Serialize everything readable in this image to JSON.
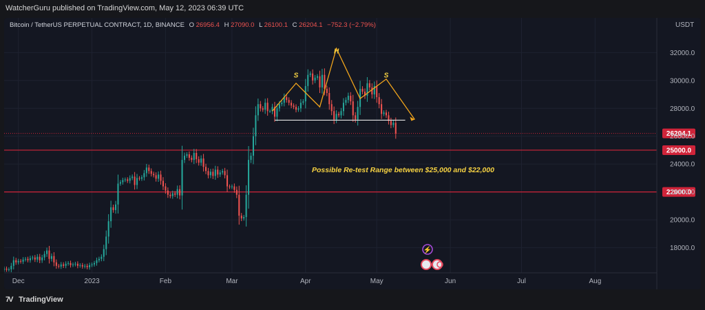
{
  "header": {
    "published": "WatcherGuru published on TradingView.com, May 12, 2023 06:39 UTC"
  },
  "legend": {
    "symbol": "Bitcoin / TetherUS PERPETUAL CONTRACT, 1D, BINANCE",
    "o_label": "O",
    "o_value": "26956.4",
    "h_label": "H",
    "h_value": "27090.0",
    "l_label": "L",
    "l_value": "26100.1",
    "c_label": "C",
    "c_value": "26204.1",
    "change": "−752.3 (−2.79%)"
  },
  "footer": {
    "brand": "TradingView"
  },
  "colors": {
    "up": "#26a69a",
    "down": "#ef5350",
    "line": "#d0243a",
    "pattern": "#f0a41c",
    "text_yellow": "#f5d142",
    "bg": "#141722"
  },
  "chart_data": {
    "type": "candlestick",
    "currency_label": "USDT",
    "ylim": [
      16200,
      33400
    ],
    "y_ticks": [
      18000,
      20000,
      22000,
      24000,
      26000,
      28000,
      30000,
      32000
    ],
    "y_tick_labels": [
      "18000.0",
      "20000.0",
      "22000.0",
      "24000.0",
      "26000.0",
      "28000.0",
      "30000.0",
      "32000.0"
    ],
    "x_start_date": "2022-11-25",
    "x_end_date": "2023-08-27",
    "x_ticks": [
      {
        "date": "2022-12-01",
        "label": "Dec"
      },
      {
        "date": "2023-01-01",
        "label": "2023"
      },
      {
        "date": "2023-02-01",
        "label": "Feb"
      },
      {
        "date": "2023-03-01",
        "label": "Mar"
      },
      {
        "date": "2023-04-01",
        "label": "Apr"
      },
      {
        "date": "2023-05-01",
        "label": "May"
      },
      {
        "date": "2023-06-01",
        "label": "Jun"
      },
      {
        "date": "2023-07-01",
        "label": "Jul"
      },
      {
        "date": "2023-08-01",
        "label": "Aug"
      }
    ],
    "closes_start_date": "2022-11-25",
    "closes": [
      16500,
      16420,
      16450,
      16700,
      17100,
      16950,
      17050,
      17000,
      17150,
      17200,
      17100,
      17250,
      17300,
      17150,
      17350,
      17100,
      17300,
      17550,
      17800,
      17200,
      17400,
      16950,
      16700,
      16650,
      16800,
      16700,
      16850,
      16900,
      16750,
      16800,
      16850,
      16700,
      16750,
      16650,
      16700,
      16600,
      16750,
      16800,
      16900,
      17100,
      17200,
      17350,
      17900,
      18800,
      19900,
      20900,
      20700,
      21100,
      22600,
      22700,
      22850,
      22900,
      22800,
      23000,
      23100,
      22500,
      23000,
      22950,
      23050,
      23350,
      23750,
      23500,
      23300,
      23200,
      22950,
      23250,
      22800,
      22400,
      22100,
      21800,
      21700,
      21900,
      21800,
      22200,
      21750,
      24300,
      24600,
      24700,
      24450,
      24300,
      24800,
      24350,
      24100,
      24400,
      23800,
      23500,
      23200,
      23450,
      23150,
      23600,
      23250,
      23400,
      23500,
      23200,
      22400,
      22350,
      22400,
      22150,
      21800,
      20300,
      20100,
      20200,
      21800,
      24300,
      24600,
      26000,
      27500,
      28300,
      28000,
      27900,
      28400,
      27800,
      27800,
      28100,
      27400,
      28000,
      28300,
      28400,
      28800,
      28600,
      28400,
      28200,
      28100,
      27900,
      28000,
      28400,
      28500,
      29600,
      30400,
      30500,
      30000,
      30200,
      30300,
      29500,
      30400,
      29400,
      29100,
      28300,
      27800,
      27200,
      27600,
      27500,
      27800,
      28400,
      28600,
      28900,
      28500,
      27500,
      27200,
      28100,
      29400,
      29200,
      28900,
      29800,
      29500,
      29000,
      29600,
      28800,
      28300,
      27600,
      27700,
      27500,
      27100,
      26800,
      26960,
      26204
    ],
    "current_price": 26204.1,
    "current_price_label": "26204.1",
    "levels": [
      {
        "value": 25000,
        "label": "25000.0"
      },
      {
        "value": 22000,
        "label": "22000.0"
      }
    ],
    "annotation": "Possible Re-test Range between $25,000 and $22,000",
    "pattern_labels": [
      {
        "text": "S",
        "date": "2023-03-28",
        "price": 30200
      },
      {
        "text": "H",
        "date": "2023-04-14",
        "price": 31950
      },
      {
        "text": "S",
        "date": "2023-05-05",
        "price": 30200
      }
    ],
    "pattern_line": [
      {
        "date": "2023-03-18",
        "price": 27800
      },
      {
        "date": "2023-03-28",
        "price": 29800
      },
      {
        "date": "2023-04-07",
        "price": 28100
      },
      {
        "date": "2023-04-14",
        "price": 32300
      },
      {
        "date": "2023-04-24",
        "price": 28700
      },
      {
        "date": "2023-05-05",
        "price": 30100
      },
      {
        "date": "2023-05-17",
        "price": 27200
      }
    ],
    "neckline": [
      {
        "date": "2023-03-19",
        "price": 27150
      },
      {
        "date": "2023-05-13",
        "price": 27150
      }
    ]
  }
}
